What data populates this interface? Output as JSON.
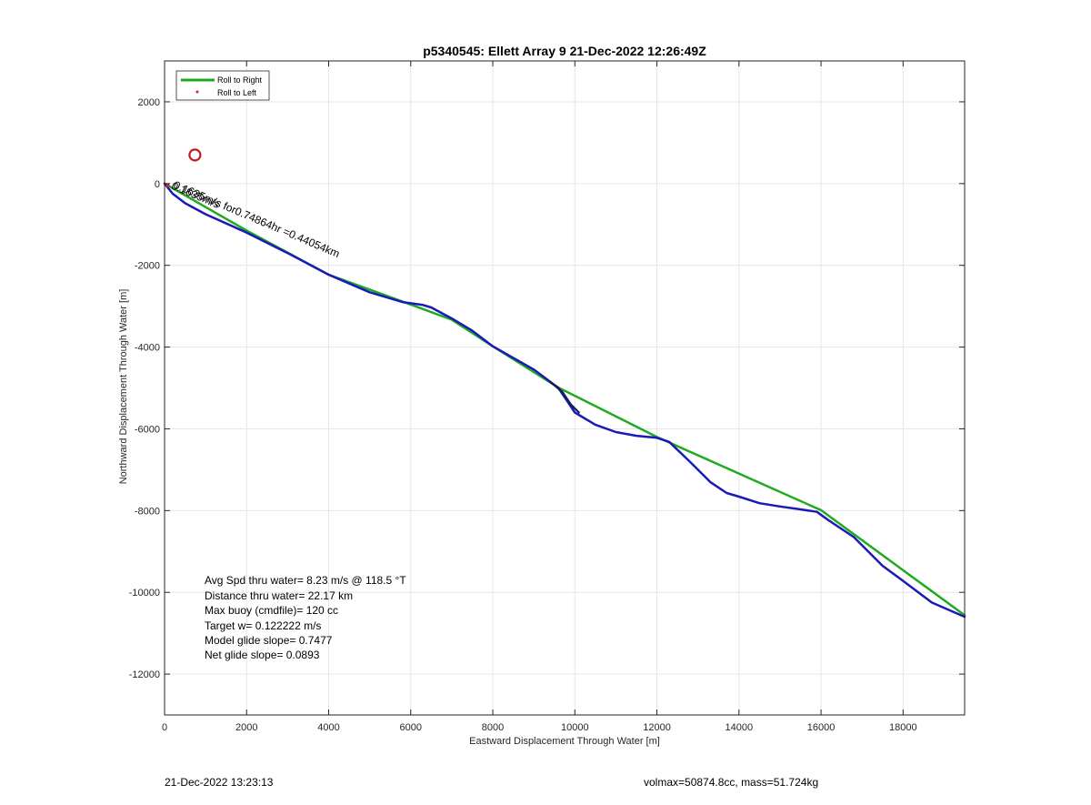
{
  "chart_data": {
    "type": "line",
    "title": "p5340545: Ellett Array 9 21-Dec-2022 12:26:49Z",
    "xlabel": "Eastward Displacement Through Water [m]",
    "ylabel": "Northward Displacement Through Water [m]",
    "xlim": [
      0,
      19500
    ],
    "ylim": [
      -13000,
      3000
    ],
    "xticks": [
      0,
      2000,
      4000,
      6000,
      8000,
      10000,
      12000,
      14000,
      16000,
      18000
    ],
    "yticks": [
      2000,
      0,
      -2000,
      -4000,
      -6000,
      -8000,
      -10000,
      -12000
    ],
    "grid": true,
    "legend": {
      "placement": "top-left",
      "entries": [
        {
          "label": "Roll to Right",
          "color": "#1faa1f",
          "style": "line"
        },
        {
          "label": "Roll to Left",
          "color": "#d42020",
          "style": "dot"
        }
      ]
    },
    "series": [
      {
        "name": "Roll to Right",
        "color": "#1faa1f",
        "x": [
          0,
          2000,
          4000,
          6000,
          7000,
          8000,
          9600,
          12000,
          16000,
          19500
        ],
        "y": [
          0,
          -1150,
          -2230,
          -2960,
          -3330,
          -3980,
          -4990,
          -6200,
          -7990,
          -10560
        ]
      },
      {
        "name": "",
        "color": "#1a1ab8",
        "x": [
          0,
          200,
          500,
          1000,
          2000,
          3000,
          4000,
          5000,
          5800,
          6300,
          6500,
          7000,
          7500,
          8000,
          9000,
          9600,
          9800,
          10000,
          10500,
          11000,
          11500,
          12000,
          12300,
          12800,
          13300,
          13700,
          14000,
          14500,
          15000,
          15500,
          15900,
          16200,
          16800,
          17500,
          18000,
          18700,
          19500
        ],
        "y": [
          0,
          -250,
          -480,
          -750,
          -1200,
          -1700,
          -2230,
          -2660,
          -2900,
          -2970,
          -3030,
          -3300,
          -3600,
          -3980,
          -4550,
          -5000,
          -5300,
          -5600,
          -5900,
          -6080,
          -6170,
          -6220,
          -6320,
          -6800,
          -7300,
          -7570,
          -7660,
          -7820,
          -7900,
          -7970,
          -8030,
          -8250,
          -8650,
          -9350,
          -9720,
          -10250,
          -10600
        ]
      },
      {
        "name": "",
        "color": "#1a1a55",
        "x": [
          9400,
          9700,
          9900,
          10100
        ],
        "y": [
          -4850,
          -5100,
          -5400,
          -5600
        ]
      }
    ],
    "markers": [
      {
        "type": "circle",
        "x": 740,
        "y": 700,
        "color": "#c21a1a"
      },
      {
        "type": "dot",
        "x": 80,
        "y": -50,
        "color": "#d42020"
      }
    ],
    "annotations": [
      {
        "text": "0.1635m/s for0.74864hr =0.44054km",
        "x": 200,
        "y": -100,
        "rotation_deg": -23
      },
      {
        "text": "0.1635m/s",
        "x": 150,
        "y": -120,
        "rotation_deg": -23
      }
    ],
    "text_box": [
      "Avg Spd thru water=  8.23 m/s @ 118.5 °T",
      "Distance thru water= 22.17 km",
      "Max buoy (cmdfile)= 120 cc",
      "Target w= 0.122222 m/s",
      "Model glide slope= 0.7477",
      "Net glide slope= 0.0893"
    ]
  },
  "footer": {
    "timestamp": "21-Dec-2022 13:23:13",
    "stats": "volmax=50874.8cc, mass=51.724kg"
  },
  "colors": {
    "axis": "#262626",
    "grid": "#e6e6e6"
  }
}
